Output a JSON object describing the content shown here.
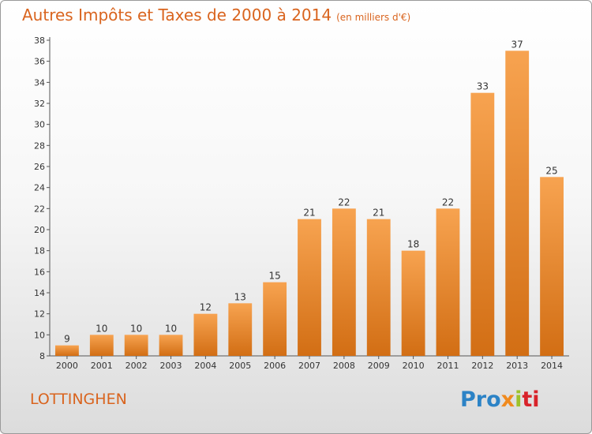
{
  "title": "Autres Impôts et Taxes de 2000 à 2014",
  "unit": "(en milliers d'€)",
  "commune": "LOTTINGHEN",
  "logo": [
    "Pro",
    "x",
    "i",
    "ti"
  ],
  "colors": {
    "bar_light": "#f7a350",
    "bar_dark": "#d26e14",
    "title": "#d9641e"
  },
  "chart_data": {
    "type": "bar",
    "title": "Autres Impôts et Taxes de 2000 à 2014",
    "xlabel": "",
    "ylabel": "",
    "categories": [
      "2000",
      "2001",
      "2002",
      "2003",
      "2004",
      "2005",
      "2006",
      "2007",
      "2008",
      "2009",
      "2010",
      "2011",
      "2012",
      "2013",
      "2014"
    ],
    "values": [
      9,
      10,
      10,
      10,
      12,
      13,
      15,
      21,
      22,
      21,
      18,
      22,
      33,
      37,
      25
    ],
    "ylim": [
      8,
      38
    ],
    "yticks": [
      8,
      10,
      12,
      14,
      16,
      18,
      20,
      22,
      24,
      26,
      28,
      30,
      32,
      34,
      36,
      38
    ],
    "grid": false,
    "legend": "none"
  }
}
